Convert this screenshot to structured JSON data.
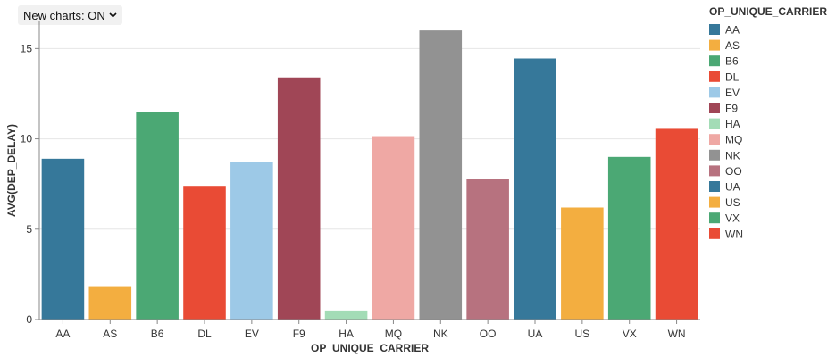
{
  "toggle": {
    "label": "New charts: ON",
    "icon": "chevron-down-icon"
  },
  "chart_data": {
    "type": "bar",
    "title": "",
    "xlabel": "OP_UNIQUE_CARRIER",
    "ylabel": "AVG(DEP_DELAY)",
    "categories": [
      "AA",
      "AS",
      "B6",
      "DL",
      "EV",
      "F9",
      "HA",
      "MQ",
      "NK",
      "OO",
      "UA",
      "US",
      "VX",
      "WN"
    ],
    "values": [
      8.9,
      1.8,
      11.5,
      7.4,
      8.7,
      13.4,
      0.5,
      10.15,
      16.0,
      7.8,
      14.45,
      6.2,
      9.0,
      10.6
    ],
    "colors": [
      "#36789a",
      "#f3ae40",
      "#4ba874",
      "#e94b35",
      "#9dc9e7",
      "#a04656",
      "#a3dcb6",
      "#efa8a4",
      "#929292",
      "#b7727f",
      "#36789a",
      "#f3ae40",
      "#4ba874",
      "#e94b35"
    ],
    "yticks": [
      0,
      5,
      10,
      15
    ],
    "ylim": [
      0,
      16.5
    ],
    "grid": true,
    "legend": {
      "title": "OP_UNIQUE_CARRIER",
      "placement": "right",
      "entries": [
        "AA",
        "AS",
        "B6",
        "DL",
        "EV",
        "F9",
        "HA",
        "MQ",
        "NK",
        "OO",
        "UA",
        "US",
        "VX",
        "WN"
      ]
    }
  }
}
